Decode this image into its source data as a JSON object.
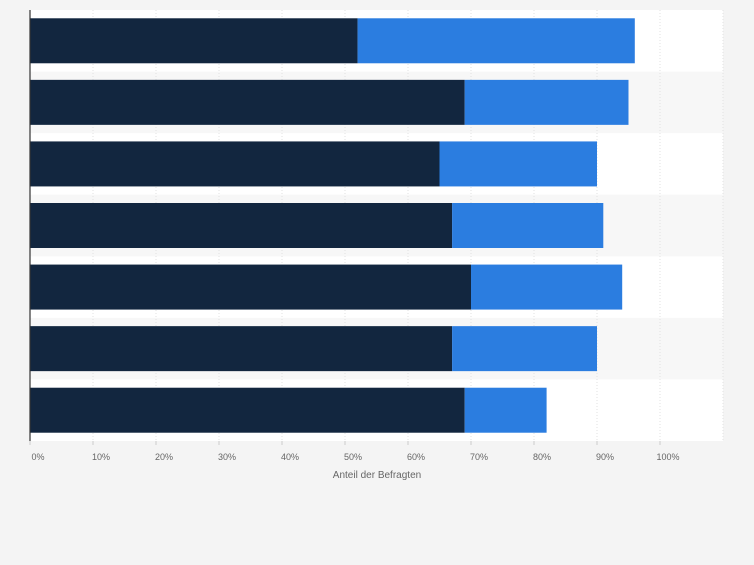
{
  "chart_data": {
    "type": "bar",
    "orientation": "horizontal",
    "stacked": true,
    "title": "",
    "xlabel": "Anteil der Befragten",
    "ylabel": "",
    "xlim": [
      0,
      110
    ],
    "x_ticks": [
      "0%",
      "10%",
      "20%",
      "30%",
      "40%",
      "50%",
      "60%",
      "70%",
      "80%",
      "90%",
      "100%"
    ],
    "categories": [
      "",
      "",
      "",
      "",
      "",
      "",
      ""
    ],
    "series": [
      {
        "color": "#12263f",
        "values": [
          52,
          69,
          65,
          67,
          70,
          67,
          69
        ]
      },
      {
        "color": "#2b7de0",
        "values": [
          44,
          26,
          25,
          24,
          24,
          23,
          13
        ]
      }
    ],
    "grid": true,
    "legend": "none"
  }
}
